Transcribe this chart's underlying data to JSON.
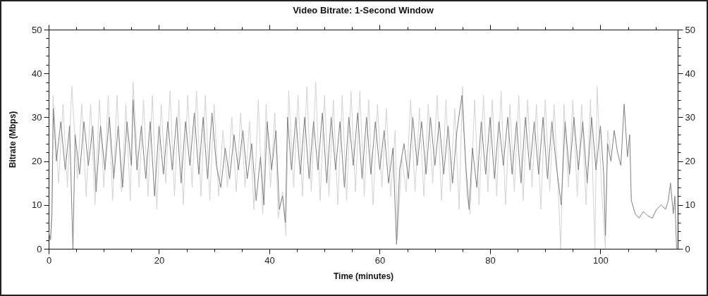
{
  "chart_data": {
    "type": "line",
    "title": "Video Bitrate: 1-Second Window",
    "xlabel": "Time (minutes)",
    "ylabel": "Bitrate (Mbps)",
    "xlim": [
      0,
      114
    ],
    "xticks": [
      0,
      {
        "value": 5,
        "label": null
      },
      {
        "value": 10,
        "label": null
      },
      {
        "value": 15,
        "label": null
      },
      20,
      {
        "value": 25,
        "label": null
      },
      {
        "value": 30,
        "label": null
      },
      {
        "value": 35,
        "label": null
      },
      40,
      {
        "value": 45,
        "label": null
      },
      {
        "value": 50,
        "label": null
      },
      {
        "value": 55,
        "label": null
      },
      60,
      {
        "value": 65,
        "label": null
      },
      {
        "value": 70,
        "label": null
      },
      {
        "value": 75,
        "label": null
      },
      80,
      {
        "value": 85,
        "label": null
      },
      {
        "value": 90,
        "label": null
      },
      {
        "value": 95,
        "label": null
      },
      100,
      {
        "value": 105,
        "label": null
      },
      {
        "value": 110,
        "label": null
      }
    ],
    "ylim": [
      0,
      50
    ],
    "yticks": [
      0,
      {
        "value": 2,
        "label": null
      },
      {
        "value": 4,
        "label": null
      },
      {
        "value": 6,
        "label": null
      },
      {
        "value": 8,
        "label": null
      },
      10,
      {
        "value": 12,
        "label": null
      },
      {
        "value": 14,
        "label": null
      },
      {
        "value": 16,
        "label": null
      },
      {
        "value": 18,
        "label": null
      },
      20,
      {
        "value": 22,
        "label": null
      },
      {
        "value": 24,
        "label": null
      },
      {
        "value": 26,
        "label": null
      },
      {
        "value": 28,
        "label": null
      },
      30,
      {
        "value": 32,
        "label": null
      },
      {
        "value": 34,
        "label": null
      },
      {
        "value": 36,
        "label": null
      },
      {
        "value": 38,
        "label": null
      },
      40,
      {
        "value": 42,
        "label": null
      },
      {
        "value": 44,
        "label": null
      },
      {
        "value": 46,
        "label": null
      },
      {
        "value": 48,
        "label": null
      },
      50
    ],
    "y2lim": [
      0,
      50
    ],
    "y2ticks": [
      0,
      {
        "value": 2,
        "label": null
      },
      {
        "value": 4,
        "label": null
      },
      {
        "value": 6,
        "label": null
      },
      {
        "value": 8,
        "label": null
      },
      10,
      {
        "value": 12,
        "label": null
      },
      {
        "value": 14,
        "label": null
      },
      {
        "value": 16,
        "label": null
      },
      {
        "value": 18,
        "label": null
      },
      20,
      {
        "value": 22,
        "label": null
      },
      {
        "value": 24,
        "label": null
      },
      {
        "value": 26,
        "label": null
      },
      {
        "value": 28,
        "label": null
      },
      30,
      {
        "value": 32,
        "label": null
      },
      {
        "value": 34,
        "label": null
      },
      {
        "value": 36,
        "label": null
      },
      {
        "value": 38,
        "label": null
      },
      40,
      {
        "value": 42,
        "label": null
      },
      {
        "value": 44,
        "label": null
      },
      {
        "value": 46,
        "label": null
      },
      {
        "value": 48,
        "label": null
      },
      50
    ],
    "series": [
      {
        "color": "#d3d3d3",
        "x": [
          0.5,
          0.8,
          1.8,
          2.6,
          3.4,
          4.2,
          5.2,
          6.0,
          6.8,
          7.6,
          8.4,
          9.2,
          10.0,
          10.8,
          11.6,
          12.4,
          13.2,
          14.0,
          14.8,
          15.3,
          16.4,
          17.2,
          18.0,
          18.8,
          19.6,
          20.4,
          21.2,
          22.0,
          22.8,
          23.6,
          24.4,
          25.2,
          26.0,
          26.8,
          27.6,
          28.4,
          29.2,
          30.0,
          30.8,
          31.6,
          32.4,
          33.2,
          34.0,
          34.8,
          35.6,
          36.4,
          37.2,
          38.0,
          38.8,
          39.4,
          40.2,
          41.0,
          41.6,
          42.4,
          43.0,
          43.5,
          44.4,
          45.2,
          46.0,
          46.8,
          47.6,
          48.4,
          49.2,
          50.0,
          50.8,
          51.6,
          52.4,
          53.2,
          54.0,
          54.8,
          55.6,
          56.4,
          57.2,
          58.0,
          58.8,
          59.6,
          60.4,
          61.2,
          62.0,
          62.8,
          63.2,
          64.0,
          64.8,
          65.6,
          66.4,
          67.2,
          68.0,
          68.8,
          69.6,
          70.4,
          71.2,
          72.0,
          72.8,
          73.6,
          74.4,
          75.0,
          75.8,
          76.4,
          77.2,
          78.0,
          78.8,
          79.6,
          80.4,
          81.2,
          82.0,
          82.8,
          83.6,
          84.4,
          85.2,
          86.0,
          86.8,
          87.6,
          88.4,
          89.2,
          90.0,
          90.8,
          91.6,
          92.4,
          92.8,
          93.4,
          94.2,
          95.0,
          95.8,
          96.6,
          97.4,
          98.2,
          99.0,
          99.4,
          100.2,
          100.9,
          101.3,
          101.9
        ],
        "values": [
          2,
          35,
          15,
          33,
          14,
          37,
          16,
          33,
          12,
          33,
          10,
          34,
          14,
          35,
          11,
          35,
          13,
          33,
          11,
          38,
          14,
          34,
          12,
          35,
          9,
          33,
          15,
          36,
          12,
          34,
          10,
          35,
          14,
          36,
          12,
          35,
          11,
          33,
          12,
          27,
          14,
          30,
          13,
          31,
          14,
          29,
          9,
          34,
          8,
          33,
          14,
          31,
          7,
          13,
          3,
          36,
          14,
          35,
          12,
          37,
          13,
          38,
          11,
          35,
          12,
          34,
          10,
          35,
          11,
          36,
          13,
          36,
          12,
          34,
          10,
          33,
          14,
          32,
          12,
          27,
          2,
          21,
          13,
          34,
          13,
          32,
          12,
          33,
          15,
          35,
          11,
          34,
          13,
          32,
          9,
          37,
          12,
          8,
          34,
          10,
          35,
          13,
          34,
          12,
          36,
          10,
          33,
          13,
          35,
          11,
          34,
          14,
          33,
          9,
          34,
          13,
          33,
          12,
          0,
          33,
          14,
          34,
          12,
          33,
          10,
          34,
          0,
          37,
          14,
          0,
          27,
          22
        ]
      },
      {
        "color": "#808080",
        "x": [
          0,
          0.3,
          0.6,
          0.85,
          1.4,
          2.2,
          3.0,
          3.8,
          4.4,
          4.8,
          5.6,
          6.4,
          7.2,
          8.0,
          8.6,
          9.4,
          10.2,
          11.0,
          11.8,
          12.6,
          13.4,
          14.2,
          15.0,
          15.3,
          16.0,
          16.8,
          17.6,
          18.4,
          19.2,
          20.0,
          20.8,
          21.6,
          22.4,
          23.2,
          24.0,
          24.8,
          25.6,
          26.4,
          27.2,
          28.0,
          28.8,
          29.6,
          30.4,
          31.2,
          32.0,
          32.8,
          33.6,
          34.4,
          35.2,
          36.0,
          36.8,
          37.6,
          38.4,
          39.0,
          39.6,
          40.4,
          41.2,
          41.8,
          42.4,
          42.9,
          43.3,
          44.0,
          44.8,
          45.6,
          46.4,
          47.2,
          48.0,
          48.8,
          49.6,
          50.4,
          51.2,
          52.0,
          52.8,
          53.6,
          54.4,
          55.2,
          56.0,
          56.8,
          57.6,
          58.4,
          59.2,
          60.0,
          60.8,
          61.6,
          62.4,
          63.05,
          63.6,
          64.4,
          65.2,
          66.0,
          66.8,
          67.6,
          68.4,
          69.2,
          70.0,
          70.8,
          71.6,
          72.4,
          73.2,
          74.0,
          74.9,
          75.6,
          76.2,
          76.8,
          77.6,
          78.4,
          79.2,
          80.0,
          80.8,
          81.6,
          82.4,
          83.2,
          84.0,
          84.8,
          85.6,
          86.4,
          87.2,
          88.0,
          88.8,
          89.6,
          90.4,
          91.2,
          92.0,
          92.9,
          93.6,
          94.4,
          95.2,
          96.0,
          96.8,
          97.6,
          98.4,
          99.2,
          100.0,
          100.6,
          100.9,
          101.3,
          101.9,
          102.5,
          103.1,
          103.7,
          104.3,
          104.9,
          105.3,
          105.6,
          106.3,
          107.0,
          107.8,
          108.6,
          109.4,
          110.2,
          111.0,
          111.8,
          112.3,
          112.7,
          113.2,
          113.5,
          113.8
        ],
        "values": [
          4,
          2,
          8,
          32,
          20,
          29,
          18,
          28,
          0,
          26,
          17,
          29,
          19,
          28,
          13,
          28,
          18,
          30,
          16,
          28,
          14,
          29,
          19,
          34,
          18,
          28,
          16,
          29,
          12,
          28,
          17,
          29,
          18,
          30,
          15,
          29,
          19,
          31,
          17,
          30,
          16,
          31,
          19,
          14,
          23,
          16,
          26,
          18,
          27,
          16,
          24,
          11,
          21,
          10,
          29,
          18,
          27,
          9,
          12,
          6,
          30,
          18,
          30,
          17,
          30,
          16,
          29,
          18,
          31,
          15,
          30,
          18,
          29,
          14,
          30,
          19,
          31,
          16,
          30,
          17,
          29,
          18,
          27,
          15,
          23,
          1,
          18,
          24,
          16,
          30,
          19,
          29,
          17,
          30,
          19,
          29,
          17,
          28,
          15,
          27,
          35,
          19,
          9,
          23,
          14,
          29,
          17,
          30,
          16,
          29,
          19,
          30,
          17,
          29,
          15,
          30,
          18,
          29,
          17,
          30,
          16,
          29,
          19,
          10,
          29,
          17,
          30,
          18,
          29,
          15,
          30,
          18,
          28,
          17,
          3,
          24,
          20,
          27,
          22,
          19,
          33,
          21,
          26,
          11,
          8,
          7,
          8.5,
          7.5,
          7,
          9,
          10,
          9,
          11,
          15,
          8,
          12,
          0
        ]
      }
    ]
  }
}
